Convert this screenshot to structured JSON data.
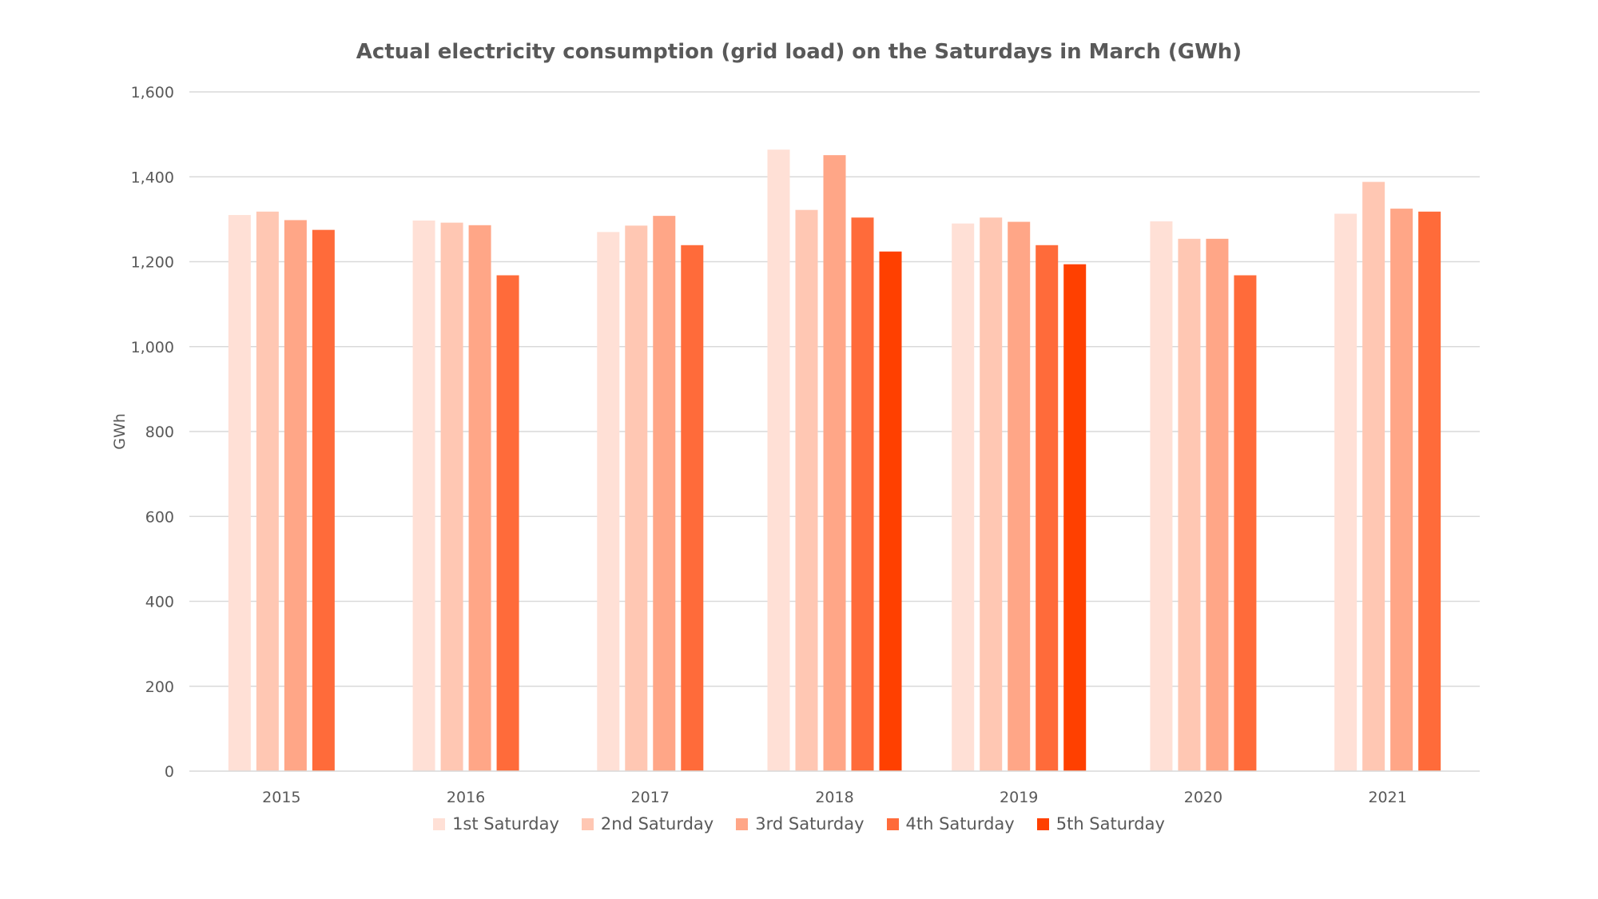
{
  "chart_data": {
    "type": "bar",
    "title": "Actual electricity consumption (grid load) on the Saturdays in March (GWh)",
    "xlabel": "",
    "ylabel": "GWh",
    "ylim": [
      0,
      1600
    ],
    "yticks": [
      "0",
      "200",
      "400",
      "600",
      "800",
      "1,000",
      "1,200",
      "1,400",
      "1,600"
    ],
    "grid": true,
    "legend_position": "bottom",
    "categories": [
      "2015",
      "2016",
      "2017",
      "2018",
      "2019",
      "2020",
      "2021"
    ],
    "series": [
      {
        "name": "1st Saturday",
        "color": "#FFE0D6",
        "values": [
          1310,
          1297,
          1270,
          1464,
          1290,
          1295,
          1313
        ]
      },
      {
        "name": "2nd Saturday",
        "color": "#FFC7B3",
        "values": [
          1318,
          1292,
          1285,
          1322,
          1304,
          1254,
          1388
        ]
      },
      {
        "name": "3rd Saturday",
        "color": "#FFA687",
        "values": [
          1298,
          1286,
          1308,
          1451,
          1294,
          1254,
          1325
        ]
      },
      {
        "name": "4th Saturday",
        "color": "#FF6B3A",
        "values": [
          1275,
          1168,
          1239,
          1304,
          1239,
          1168,
          1318
        ]
      },
      {
        "name": "5th Saturday",
        "color": "#FF4000",
        "values": [
          null,
          null,
          null,
          1224,
          1194,
          null,
          null
        ]
      }
    ]
  }
}
